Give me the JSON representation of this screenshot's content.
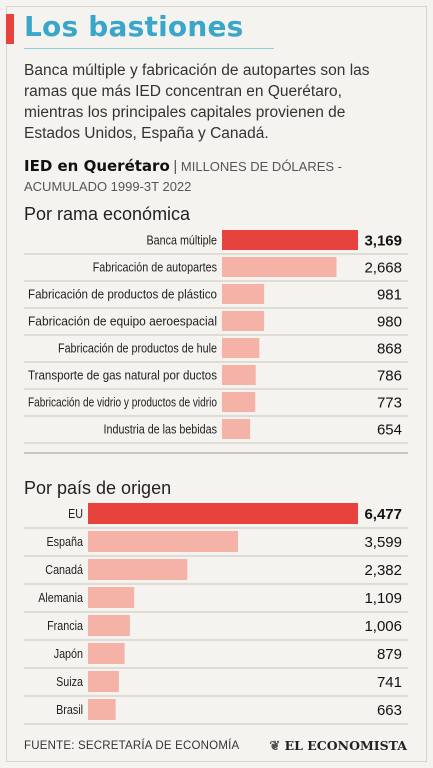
{
  "header": {
    "title": "Los bastiones",
    "intro": "Banca múltiple y fabricación de autopartes son las ramas que más IED concentran en Querétaro, mientras los principales capitales provienen de Estados Unidos, España y Canadá.",
    "sub_strong": "IED en Querétaro",
    "sub_sep": "|",
    "sub_units": "MILLONES DE DÓLARES - ACUMULADO 1999-3T 2022"
  },
  "chart_data": [
    {
      "type": "bar",
      "title": "Por rama económica",
      "categories": [
        "Banca múltiple",
        "Fabricación de autopartes",
        "Fabricación de productos de plástico",
        "Fabricación de equipo aeroespacial",
        "Fabricación de productos de hule",
        "Transporte de gas natural por ductos",
        "Fabricación de vidrio y productos de vidrio",
        "Industria de las bebidas"
      ],
      "values": [
        3169,
        2668,
        981,
        980,
        868,
        786,
        773,
        654
      ],
      "value_labels": [
        "3,169",
        "2,668",
        "981",
        "980",
        "868",
        "786",
        "773",
        "654"
      ],
      "highlight_color": "#e8423f",
      "bar_color": "#f5b3a8"
    },
    {
      "type": "bar",
      "title": "Por país de origen",
      "categories": [
        "EU",
        "España",
        "Canadá",
        "Alemania",
        "Francia",
        "Japón",
        "Suiza",
        "Brasil"
      ],
      "values": [
        6477,
        3599,
        2382,
        1109,
        1006,
        879,
        741,
        663
      ],
      "value_labels": [
        "6,477",
        "3,599",
        "2,382",
        "1,109",
        "1,006",
        "879",
        "741",
        "663"
      ],
      "highlight_color": "#e8423f",
      "bar_color": "#f5b3a8"
    }
  ],
  "footer": {
    "source": "FUENTE: SECRETARÍA DE ECONOMÍA",
    "brand_mark": "❦",
    "brand": "EL ECONOMISTA"
  }
}
